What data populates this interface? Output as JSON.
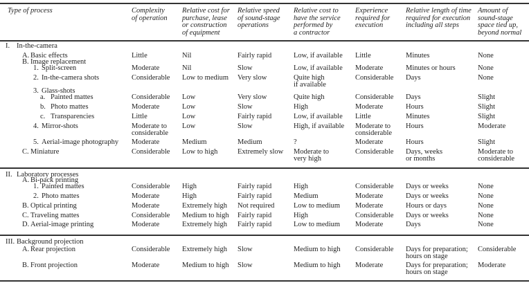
{
  "headers": [
    "Type of process",
    "Complexity\nof operation",
    "Relative cost for\npurchase, lease\nor construction\nof equipment",
    "Relative speed\nof sound-stage\noperations",
    "Relative cost to\nhave the service\nperformed by\na contractor",
    "Experience\nrequired for\nexecution",
    "Relative length of time\nrequired for execution\nincluding all steps",
    "Amount of\nsound-stage\nspace tied up,\nbeyond normal"
  ],
  "sections": [
    {
      "marker": "I.",
      "label": "In-the-camera",
      "rows": [
        {
          "level": 1,
          "marker": "A.",
          "label": "Basic effects",
          "cells": [
            "Little",
            "Nil",
            "Fairly rapid",
            "Low, if available",
            "Little",
            "Minutes",
            "None"
          ]
        },
        {
          "level": 1,
          "marker": "B.",
          "label": "Image replacement",
          "cells": []
        },
        {
          "level": 2,
          "marker": "1.",
          "label": "Split-screen",
          "cells": [
            "Moderate",
            "Nil",
            "Slow",
            "Low, if available",
            "Moderate",
            "Minutes or hours",
            "None"
          ]
        },
        {
          "level": 2,
          "marker": "2.",
          "label": "In-the-camera shots",
          "cells": [
            "Considerable",
            "Low to medium",
            "Very slow",
            "Quite high\nif available",
            "Considerable",
            "Days",
            "None"
          ]
        },
        {
          "level": 2,
          "marker": "3.",
          "label": "Glass-shots",
          "cells": []
        },
        {
          "level": 3,
          "marker": "a.",
          "label": "Painted mattes",
          "cells": [
            "Considerable",
            "Low",
            "Very slow",
            "Quite high",
            "Considerable",
            "Days",
            "Slight"
          ]
        },
        {
          "level": 3,
          "marker": "b.",
          "label": "Photo mattes",
          "cells": [
            "Moderate",
            "Low",
            "Slow",
            "High",
            "Moderate",
            "Hours",
            "Slight"
          ]
        },
        {
          "level": 3,
          "marker": "c.",
          "label": "Transparencies",
          "cells": [
            "Little",
            "Low",
            "Fairly rapid",
            "Low, if available",
            "Little",
            "Minutes",
            "Slight"
          ]
        },
        {
          "level": 2,
          "marker": "4.",
          "label": "Mirror-shots",
          "cells": [
            "Moderate to\nconsiderable",
            "Low",
            "Slow",
            "High, if available",
            "Moderate to\nconsiderable",
            "Hours",
            "Moderate"
          ]
        },
        {
          "level": 2,
          "marker": "5.",
          "label": "Aerial-image photography",
          "cells": [
            "Moderate",
            "Medium",
            "Medium",
            "?",
            "Moderate",
            "Hours",
            "Slight"
          ]
        },
        {
          "level": 1,
          "marker": "C.",
          "label": "Miniature",
          "cells": [
            "Considerable",
            "Low to high",
            "Extremely slow",
            "Moderate to\nvery high",
            "Considerable",
            "Days, weeks\nor months",
            "Moderate to\nconsiderable"
          ]
        }
      ]
    },
    {
      "marker": "II.",
      "label": "Laboratory processes",
      "rows": [
        {
          "level": 1,
          "marker": "A.",
          "label": "Bi-pack printing",
          "cells": []
        },
        {
          "level": 2,
          "marker": "1.",
          "label": "Painted mattes",
          "cells": [
            "Considerable",
            "High",
            "Fairly rapid",
            "High",
            "Considerable",
            "Days or weeks",
            "None"
          ]
        },
        {
          "level": 2,
          "marker": "2.",
          "label": "Photo mattes",
          "cells": [
            "Moderate",
            "High",
            "Fairly rapid",
            "Medium",
            "Moderate",
            "Days or weeks",
            "None"
          ]
        },
        {
          "level": 1,
          "marker": "B.",
          "label": "Optical printing",
          "cells": [
            "Moderate",
            "Extremely high",
            "Not required",
            "Low to medium",
            "Moderate",
            "Hours or days",
            "None"
          ]
        },
        {
          "level": 1,
          "marker": "C.",
          "label": "Traveling mattes",
          "cells": [
            "Considerable",
            "Medium to high",
            "Fairly rapid",
            "High",
            "Considerable",
            "Days or weeks",
            "None"
          ]
        },
        {
          "level": 1,
          "marker": "D.",
          "label": "Aerial-image printing",
          "cells": [
            "Moderate",
            "Extremely high",
            "Fairly rapid",
            "Low to medium",
            "Moderate",
            "Days",
            "None"
          ]
        }
      ]
    },
    {
      "marker": "III.",
      "label": "Background projection",
      "rows": [
        {
          "level": 1,
          "marker": "A.",
          "label": "Rear projection",
          "cells": [
            "Considerable",
            "Extremely high",
            "Slow",
            "Medium to high",
            "Considerable",
            "Days for preparation;\nhours on stage",
            "Considerable"
          ]
        },
        {
          "level": 1,
          "marker": "B.",
          "label": "Front projection",
          "cells": [
            "Moderate",
            "Medium to high",
            "Slow",
            "Medium to high",
            "Moderate",
            "Days for preparation;\nhours on stage",
            "Moderate"
          ]
        }
      ]
    }
  ]
}
